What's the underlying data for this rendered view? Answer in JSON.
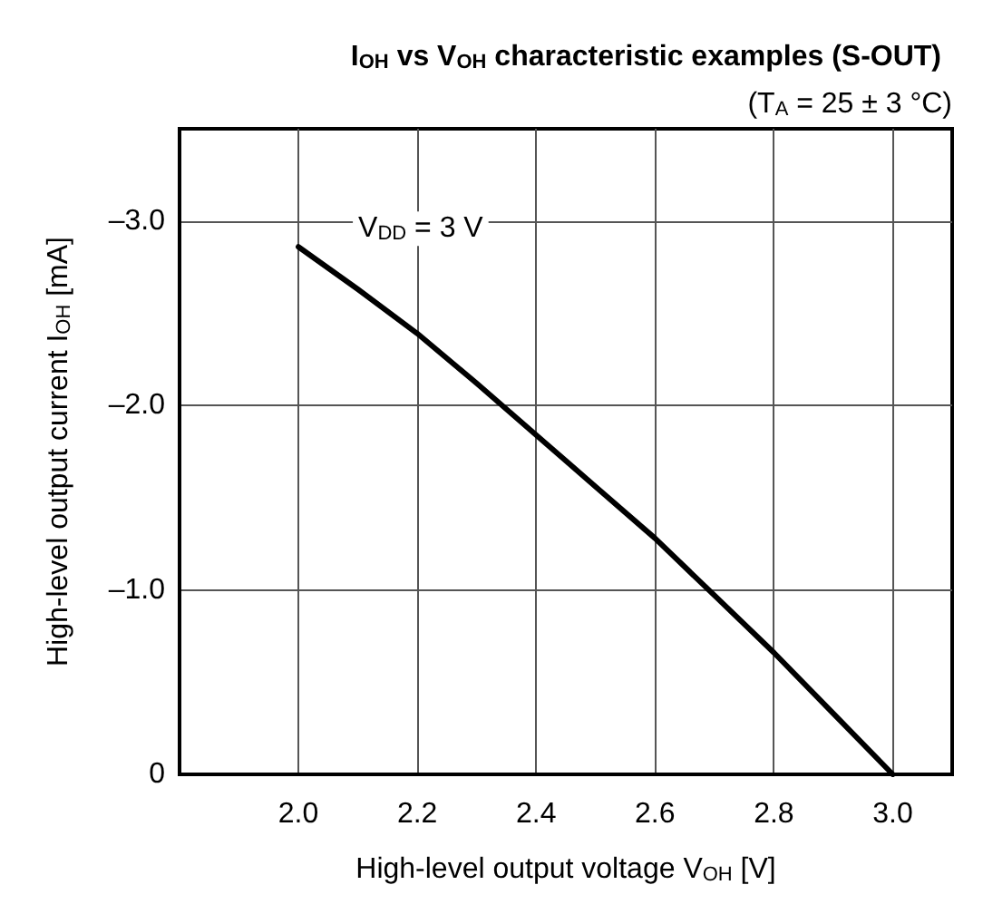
{
  "chart_data": {
    "type": "line",
    "title": "I$_{OH}$ vs V$_{OH}$ characteristic examples (S-OUT)",
    "subtitle": "(T$_{A}$ = 25 ± 3 °C)",
    "xlabel": "High-level output voltage V$_{OH}$ [V]",
    "ylabel": "High-level output current I$_{OH}$ [mA]",
    "x": [
      2.0,
      2.1,
      2.2,
      2.3,
      2.4,
      2.5,
      2.6,
      2.7,
      2.8,
      2.9,
      3.0
    ],
    "series": [
      {
        "name": "V$_{DD}$ = 3 V",
        "color": "#000000",
        "values": [
          -2.86,
          -2.63,
          -2.39,
          -2.12,
          -1.84,
          -1.56,
          -1.28,
          -0.97,
          -0.66,
          -0.33,
          0
        ]
      }
    ],
    "xlim": [
      1.8,
      3.1
    ],
    "ylim": [
      0,
      -3.5
    ],
    "xticks": [
      {
        "value": 2.0,
        "label": "2.0"
      },
      {
        "value": 2.2,
        "label": "2.2"
      },
      {
        "value": 2.4,
        "label": "2.4"
      },
      {
        "value": 2.6,
        "label": "2.6"
      },
      {
        "value": 2.8,
        "label": "2.8"
      },
      {
        "value": 3.0,
        "label": "3.0"
      }
    ],
    "yticks": [
      0,
      {
        "value": -1,
        "label": "–1.0"
      },
      {
        "value": -2,
        "label": "–2.0"
      },
      {
        "value": -3,
        "label": "–3.0"
      }
    ],
    "grid": true,
    "marker": "none",
    "line_style": "solid"
  }
}
